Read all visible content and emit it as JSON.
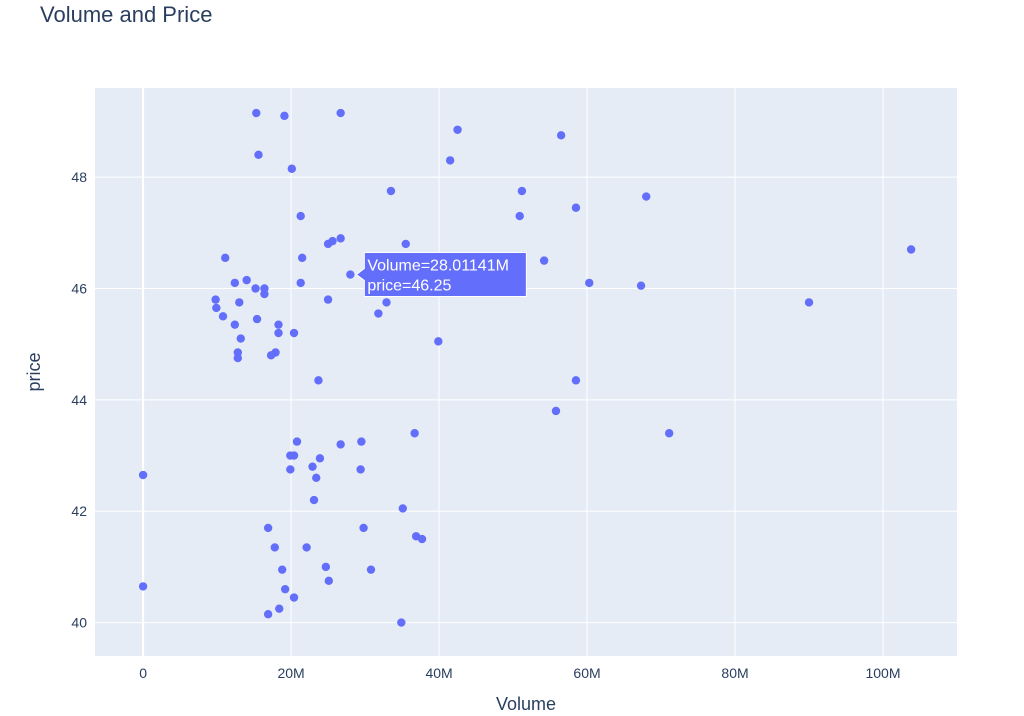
{
  "colors": {
    "plot_bg": "#e5ecf6",
    "grid": "#ffffff",
    "marker": "#636efa",
    "text": "#2a3f5f"
  },
  "chart_data": {
    "type": "scatter",
    "title": "Volume and Price",
    "xlabel": "Volume",
    "ylabel": "price",
    "xlim": [
      -6500000,
      110000000
    ],
    "ylim": [
      39.4,
      49.6
    ],
    "x_ticks": [
      {
        "value": 0,
        "label": "0"
      },
      {
        "value": 20000000,
        "label": "20M"
      },
      {
        "value": 40000000,
        "label": "40M"
      },
      {
        "value": 60000000,
        "label": "60M"
      },
      {
        "value": 80000000,
        "label": "80M"
      },
      {
        "value": 100000000,
        "label": "100M"
      }
    ],
    "y_ticks": [
      {
        "value": 40,
        "label": "40"
      },
      {
        "value": 42,
        "label": "42"
      },
      {
        "value": 44,
        "label": "44"
      },
      {
        "value": 46,
        "label": "46"
      },
      {
        "value": 48,
        "label": "48"
      }
    ],
    "grid": true,
    "series": [
      {
        "points": [
          [
            15300000,
            49.15
          ],
          [
            19100000,
            49.1
          ],
          [
            26700000,
            49.15
          ],
          [
            42500000,
            48.85
          ],
          [
            56500000,
            48.75
          ],
          [
            15600000,
            48.4
          ],
          [
            41500000,
            48.3
          ],
          [
            20100000,
            48.15
          ],
          [
            33500000,
            47.75
          ],
          [
            51200000,
            47.75
          ],
          [
            68000000,
            47.65
          ],
          [
            58500000,
            47.45
          ],
          [
            21300000,
            47.3
          ],
          [
            50900000,
            47.3
          ],
          [
            26700000,
            46.9
          ],
          [
            25600000,
            46.85
          ],
          [
            25000000,
            46.8
          ],
          [
            35500000,
            46.8
          ],
          [
            103800000,
            46.7
          ],
          [
            11100000,
            46.55
          ],
          [
            21500000,
            46.55
          ],
          [
            54200000,
            46.5
          ],
          [
            28011410,
            46.25
          ],
          [
            12400000,
            46.1
          ],
          [
            14000000,
            46.15
          ],
          [
            21300000,
            46.1
          ],
          [
            60300000,
            46.1
          ],
          [
            67300000,
            46.05
          ],
          [
            15200000,
            46.0
          ],
          [
            16400000,
            46.0
          ],
          [
            16400000,
            45.9
          ],
          [
            9800000,
            45.8
          ],
          [
            25000000,
            45.8
          ],
          [
            90000000,
            45.75
          ],
          [
            13000000,
            45.75
          ],
          [
            32900000,
            45.75
          ],
          [
            9900000,
            45.65
          ],
          [
            10800000,
            45.5
          ],
          [
            31800000,
            45.55
          ],
          [
            15400000,
            45.45
          ],
          [
            12400000,
            45.35
          ],
          [
            18300000,
            45.35
          ],
          [
            18300000,
            45.2
          ],
          [
            20400000,
            45.2
          ],
          [
            13200000,
            45.1
          ],
          [
            39900000,
            45.05
          ],
          [
            12800000,
            44.85
          ],
          [
            17900000,
            44.85
          ],
          [
            12800000,
            44.75
          ],
          [
            17300000,
            44.8
          ],
          [
            23700000,
            44.35
          ],
          [
            58500000,
            44.35
          ],
          [
            55800000,
            43.8
          ],
          [
            36700000,
            43.4
          ],
          [
            71100000,
            43.4
          ],
          [
            20800000,
            43.25
          ],
          [
            26700000,
            43.2
          ],
          [
            29500000,
            43.25
          ],
          [
            19900000,
            43.0
          ],
          [
            20400000,
            43.0
          ],
          [
            23900000,
            42.95
          ],
          [
            22900000,
            42.8
          ],
          [
            19900000,
            42.75
          ],
          [
            29400000,
            42.75
          ],
          [
            0,
            42.65
          ],
          [
            23400000,
            42.6
          ],
          [
            23100000,
            42.2
          ],
          [
            35100000,
            42.05
          ],
          [
            16900000,
            41.7
          ],
          [
            29800000,
            41.7
          ],
          [
            36900000,
            41.55
          ],
          [
            37700000,
            41.5
          ],
          [
            17800000,
            41.35
          ],
          [
            22100000,
            41.35
          ],
          [
            24700000,
            41.0
          ],
          [
            18800000,
            40.95
          ],
          [
            30800000,
            40.95
          ],
          [
            25100000,
            40.75
          ],
          [
            0,
            40.65
          ],
          [
            19200000,
            40.6
          ],
          [
            20400000,
            40.45
          ],
          [
            18400000,
            40.25
          ],
          [
            16900000,
            40.15
          ],
          [
            34900000,
            40.0
          ]
        ]
      }
    ],
    "hover": {
      "line1": "Volume=28.01141M",
      "line2": "price=46.25",
      "x": 28011410,
      "y": 46.25
    }
  }
}
